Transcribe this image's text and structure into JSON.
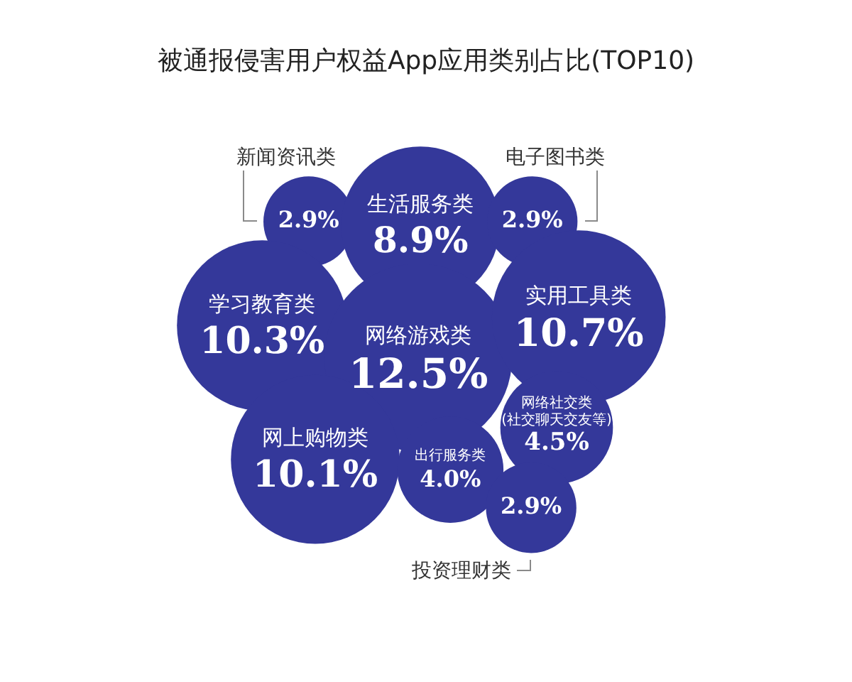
{
  "chart_data": {
    "type": "other",
    "title": "被通报侵害用户权益App应用类别占比(TOP10)",
    "categories": [
      "新闻资讯类",
      "生活服务类",
      "电子图书类",
      "学习教育类",
      "网络游戏类",
      "实用工具类",
      "网上购物类",
      "网络社交类(社交聊天交友等)",
      "出行服务类",
      "投资理财类"
    ],
    "values": [
      2.9,
      8.9,
      2.9,
      10.3,
      12.5,
      10.7,
      10.1,
      4.5,
      4.0,
      2.9
    ],
    "value_labels": [
      "2.9%",
      "8.9%",
      "2.9%",
      "10.3%",
      "12.5%",
      "10.7%",
      "10.1%",
      "4.5%",
      "4.0%",
      "2.9%"
    ],
    "color": "#34389a"
  }
}
